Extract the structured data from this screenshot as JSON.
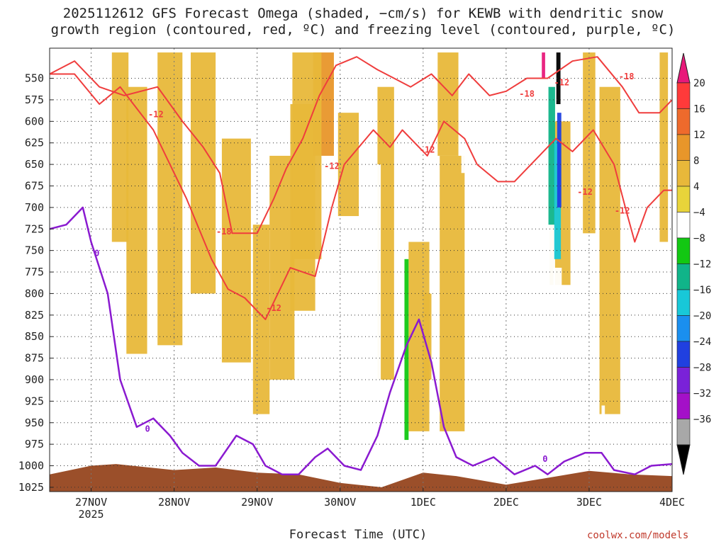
{
  "title_line1": "2025112612 GFS Forecast Omega (shaded, −cm/s) for KEWB with dendritic snow",
  "title_line2": "growth region (contoured, red, ºC) and freezing level (contoured, purple, ºC)",
  "xlabel": "Forecast Time (UTC)",
  "credit": "coolwx.com/models",
  "chart_data": {
    "type": "heatmap",
    "title": "2025112612 GFS Forecast Omega (shaded, −cm/s) for KEWB with dendritic snow growth region (contoured, red, ºC) and freezing level (contoured, purple, ºC)",
    "xlabel": "Forecast Time (UTC)",
    "ylabel": "",
    "x_ticks": [
      "27NOV",
      "28NOV",
      "29NOV",
      "30NOV",
      "1DEC",
      "2DEC",
      "3DEC",
      "4DEC"
    ],
    "x_year_label": "2025",
    "xlim_days": [
      -0.5,
      7.0
    ],
    "y_ticks": [
      550,
      575,
      600,
      625,
      650,
      675,
      700,
      725,
      750,
      775,
      800,
      825,
      850,
      875,
      900,
      925,
      950,
      975,
      1000,
      1025
    ],
    "ylim": [
      515,
      1030
    ],
    "grid": true,
    "colorbar": {
      "labels": [
        "20",
        "16",
        "12",
        "8",
        "4",
        "−4",
        "−8",
        "−12",
        "−16",
        "−20",
        "−24",
        "−28",
        "−32",
        "−36"
      ],
      "colors": [
        "#ff3a3a",
        "#ee6a2c",
        "#e8962a",
        "#e8b83a",
        "#e8d43a",
        "#ffffff",
        "#12c812",
        "#10b489",
        "#18c8d8",
        "#1a8fef",
        "#2040e0",
        "#7a22d8",
        "#a410c8",
        "#a8a8a8"
      ],
      "top_arrow_color": "#e8197a",
      "bottom_arrow_color": "#000000"
    },
    "omega_regions": [
      {
        "value": 6,
        "x": 0.35,
        "p_top": 520,
        "p_bot": 740,
        "width": 0.2
      },
      {
        "value": 5,
        "x": 0.55,
        "p_top": 560,
        "p_bot": 870,
        "width": 0.25
      },
      {
        "value": 5,
        "x": 0.95,
        "p_top": 520,
        "p_bot": 860,
        "width": 0.3
      },
      {
        "value": 6,
        "x": 1.35,
        "p_top": 520,
        "p_bot": 800,
        "width": 0.3
      },
      {
        "value": 5,
        "x": 1.75,
        "p_top": 620,
        "p_bot": 880,
        "width": 0.35
      },
      {
        "value": 7,
        "x": 2.05,
        "p_top": 720,
        "p_bot": 940,
        "width": 0.2
      },
      {
        "value": 6,
        "x": 2.3,
        "p_top": 640,
        "p_bot": 900,
        "width": 0.3
      },
      {
        "value": 5,
        "x": 2.55,
        "p_top": 580,
        "p_bot": 820,
        "width": 0.3
      },
      {
        "value": 9,
        "x": 2.8,
        "p_top": 520,
        "p_bot": 640,
        "width": 0.25
      },
      {
        "value": 6,
        "x": 2.6,
        "p_top": 520,
        "p_bot": 760,
        "width": 0.35
      },
      {
        "value": 5,
        "x": 3.1,
        "p_top": 590,
        "p_bot": 710,
        "width": 0.25
      },
      {
        "value": 5,
        "x": 3.55,
        "p_top": 560,
        "p_bot": 900,
        "width": 0.2
      },
      {
        "value": 6,
        "x": 3.95,
        "p_top": 740,
        "p_bot": 960,
        "width": 0.25
      },
      {
        "value": 8,
        "x": 4.05,
        "p_top": 800,
        "p_bot": 900,
        "width": 0.1
      },
      {
        "value": 5,
        "x": 4.35,
        "p_top": 640,
        "p_bot": 960,
        "width": 0.3
      },
      {
        "value": 5,
        "x": 4.3,
        "p_top": 520,
        "p_bot": 640,
        "width": 0.25
      },
      {
        "value": 5,
        "x": 5.65,
        "p_top": 600,
        "p_bot": 790,
        "width": 0.25
      },
      {
        "value": 6,
        "x": 6.25,
        "p_top": 560,
        "p_bot": 940,
        "width": 0.25
      },
      {
        "value": 5,
        "x": 6.0,
        "p_top": 520,
        "p_bot": 730,
        "width": 0.15
      },
      {
        "value": 5,
        "x": 6.9,
        "p_top": 520,
        "p_bot": 740,
        "width": 0.1
      },
      {
        "value": -6,
        "x": -0.38,
        "p_top": 520,
        "p_bot": 605,
        "width": 0.04
      },
      {
        "value": -6,
        "x": 3.45,
        "p_top": 650,
        "p_bot": 985,
        "width": 0.08
      },
      {
        "value": -10,
        "x": 3.8,
        "p_top": 760,
        "p_bot": 970,
        "width": 0.05
      },
      {
        "value": -6,
        "x": 4.55,
        "p_top": 520,
        "p_bot": 660,
        "width": 0.18
      },
      {
        "value": -6,
        "x": 5.5,
        "p_top": 620,
        "p_bot": 860,
        "width": 0.18
      },
      {
        "value": -14,
        "x": 5.55,
        "p_top": 560,
        "p_bot": 720,
        "width": 0.08
      },
      {
        "value": -18,
        "x": 5.62,
        "p_top": 620,
        "p_bot": 760,
        "width": 0.08
      },
      {
        "value": -26,
        "x": 5.64,
        "p_top": 590,
        "p_bot": 700,
        "width": 0.05
      },
      {
        "value": -6,
        "x": 5.62,
        "p_top": 770,
        "p_bot": 900,
        "width": 0.1
      },
      {
        "value": -6,
        "x": 6.17,
        "p_top": 930,
        "p_bot": 980,
        "width": 0.04
      },
      {
        "value": -38,
        "x": 5.63,
        "p_top": 520,
        "p_bot": 580,
        "width": 0.05
      },
      {
        "value": 22,
        "x": 5.45,
        "p_top": 520,
        "p_bot": 550,
        "width": 0.04
      }
    ],
    "dgz_contours": [
      {
        "label": "-12",
        "points": [
          [
            -0.5,
            545
          ],
          [
            -0.2,
            545
          ],
          [
            0.1,
            580
          ],
          [
            0.35,
            560
          ],
          [
            0.55,
            585
          ],
          [
            0.75,
            610
          ],
          [
            0.95,
            650
          ],
          [
            1.15,
            690
          ],
          [
            1.45,
            760
          ],
          [
            1.65,
            795
          ],
          [
            1.85,
            805
          ],
          [
            2.1,
            830
          ],
          [
            2.4,
            770
          ],
          [
            2.7,
            780
          ],
          [
            2.9,
            700
          ],
          [
            3.05,
            650
          ],
          [
            3.4,
            610
          ],
          [
            3.6,
            630
          ],
          [
            3.75,
            610
          ],
          [
            4.05,
            640
          ],
          [
            4.25,
            600
          ],
          [
            4.5,
            620
          ],
          [
            4.65,
            650
          ],
          [
            4.9,
            670
          ],
          [
            5.1,
            670
          ],
          [
            5.3,
            650
          ],
          [
            5.6,
            620
          ],
          [
            5.8,
            635
          ],
          [
            6.05,
            610
          ],
          [
            6.3,
            650
          ],
          [
            6.45,
            705
          ],
          [
            6.55,
            740
          ],
          [
            6.7,
            700
          ],
          [
            6.9,
            680
          ],
          [
            7.0,
            680
          ]
        ]
      },
      {
        "label": "-18",
        "points": [
          [
            -0.5,
            545
          ],
          [
            -0.2,
            530
          ],
          [
            0.1,
            560
          ],
          [
            0.4,
            570
          ],
          [
            0.8,
            560
          ],
          [
            1.1,
            600
          ],
          [
            1.35,
            630
          ],
          [
            1.55,
            660
          ],
          [
            1.7,
            730
          ],
          [
            2.0,
            730
          ],
          [
            2.2,
            690
          ],
          [
            2.35,
            655
          ],
          [
            2.55,
            620
          ],
          [
            2.75,
            570
          ],
          [
            2.95,
            535
          ],
          [
            3.2,
            525
          ],
          [
            3.45,
            540
          ],
          [
            3.65,
            550
          ],
          [
            3.85,
            560
          ],
          [
            4.1,
            545
          ],
          [
            4.35,
            570
          ],
          [
            4.55,
            545
          ],
          [
            4.8,
            570
          ],
          [
            5.0,
            565
          ],
          [
            5.25,
            550
          ],
          [
            5.5,
            550
          ],
          [
            5.8,
            530
          ],
          [
            6.1,
            525
          ],
          [
            6.4,
            560
          ],
          [
            6.6,
            590
          ],
          [
            6.85,
            590
          ],
          [
            7.0,
            575
          ]
        ]
      }
    ],
    "freezing_contour": {
      "label": "0",
      "points": [
        [
          -0.5,
          725
        ],
        [
          -0.3,
          720
        ],
        [
          -0.1,
          700
        ],
        [
          0.0,
          740
        ],
        [
          0.2,
          800
        ],
        [
          0.35,
          900
        ],
        [
          0.55,
          955
        ],
        [
          0.75,
          945
        ],
        [
          0.95,
          965
        ],
        [
          1.1,
          985
        ],
        [
          1.3,
          1000
        ],
        [
          1.5,
          1000
        ],
        [
          1.75,
          965
        ],
        [
          1.95,
          975
        ],
        [
          2.1,
          1000
        ],
        [
          2.3,
          1010
        ],
        [
          2.5,
          1010
        ],
        [
          2.7,
          990
        ],
        [
          2.85,
          980
        ],
        [
          3.05,
          1000
        ],
        [
          3.25,
          1005
        ],
        [
          3.45,
          965
        ],
        [
          3.6,
          915
        ],
        [
          3.8,
          860
        ],
        [
          3.95,
          830
        ],
        [
          4.1,
          880
        ],
        [
          4.25,
          955
        ],
        [
          4.4,
          990
        ],
        [
          4.6,
          1000
        ],
        [
          4.85,
          990
        ],
        [
          5.1,
          1010
        ],
        [
          5.35,
          1000
        ],
        [
          5.5,
          1010
        ],
        [
          5.7,
          995
        ],
        [
          5.95,
          985
        ],
        [
          6.15,
          985
        ],
        [
          6.3,
          1005
        ],
        [
          6.55,
          1010
        ],
        [
          6.75,
          1000
        ],
        [
          7.0,
          998
        ]
      ]
    },
    "contour_labels": [
      {
        "text": "-12",
        "x": 0.78,
        "p": 592,
        "color": "#ef3d3d"
      },
      {
        "text": "-18",
        "x": 1.6,
        "p": 728,
        "color": "#ef3d3d"
      },
      {
        "text": "-12",
        "x": 2.2,
        "p": 817,
        "color": "#ef3d3d"
      },
      {
        "text": "-12",
        "x": 2.9,
        "p": 652,
        "color": "#ef3d3d"
      },
      {
        "text": "-12",
        "x": 4.05,
        "p": 633,
        "color": "#ef3d3d"
      },
      {
        "text": "-18",
        "x": 5.25,
        "p": 568,
        "color": "#ef3d3d"
      },
      {
        "text": "-12",
        "x": 5.95,
        "p": 682,
        "color": "#ef3d3d"
      },
      {
        "text": "-12",
        "x": 5.67,
        "p": 555,
        "color": "#ef3d3d"
      },
      {
        "text": "-18",
        "x": 6.45,
        "p": 548,
        "color": "#ef3d3d"
      },
      {
        "text": "-12",
        "x": 6.4,
        "p": 704,
        "color": "#ef3d3d"
      },
      {
        "text": "0",
        "x": 0.07,
        "p": 753,
        "color": "#8a1ad0"
      },
      {
        "text": "0",
        "x": 0.68,
        "p": 957,
        "color": "#8a1ad0"
      },
      {
        "text": "0",
        "x": 5.47,
        "p": 992,
        "color": "#8a1ad0"
      }
    ],
    "terrain_color": "#9b4f2a"
  }
}
